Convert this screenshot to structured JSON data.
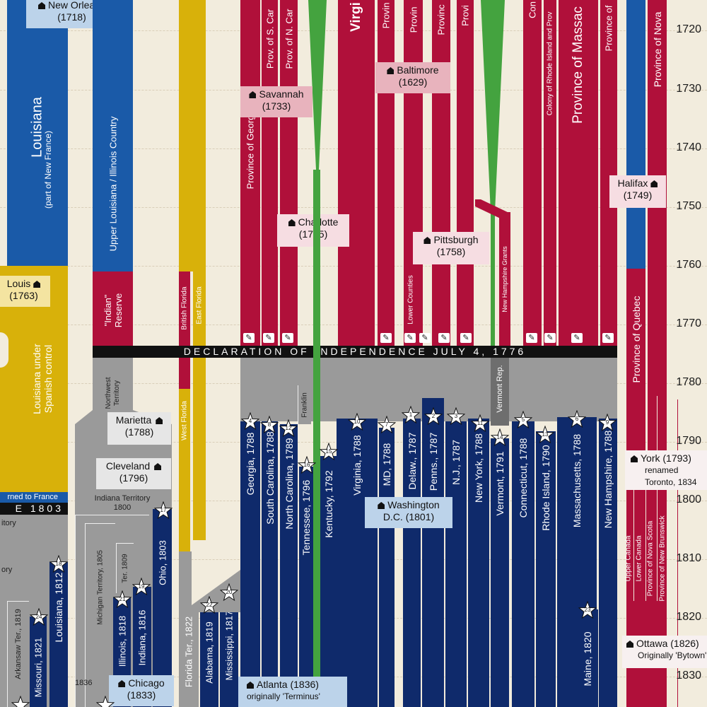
{
  "years": [
    "1720",
    "1730",
    "1740",
    "1750",
    "1760",
    "1770",
    "1780",
    "1790",
    "1800",
    "1810",
    "1820",
    "1830"
  ],
  "declaration": "DECLARATION OF INDEPENDENCE JULY 4, 1776",
  "declaration_left": "E 1803",
  "returned_to_france": "rned to France",
  "colors": {
    "red": "#b0103a",
    "blue": "#1a5aa8",
    "navy": "#0f2a6b",
    "yellow": "#d8b10a",
    "green": "#44a33f",
    "grey": "#9a9a9a",
    "background": "#f2ecdd"
  },
  "labels": {
    "louisiana": "Louisiana",
    "louisiana_sub": "(part of New France)",
    "upper_louisiana": "Upper Louisiana / Illinois Country",
    "indian_reserve": "\"Indian\" Reserve",
    "louisiana_spanish": "Louisiana under Spanish control",
    "northwest_territory": "Northwest Territory",
    "indiana_territory": "Indiana Territory",
    "indiana_territory_year": "1800",
    "territory_left": "itory",
    "territory_left2": "ory",
    "michigan_territory": "Michigan Territory, 1805",
    "ter_1809": "Ter. 1809",
    "arkansaw": "Arkansaw Ter., 1819",
    "year_1836": "1836",
    "british_florida": "British Florida",
    "east_florida": "East Florida",
    "west_florida": "West Florida",
    "florida_ter": "Florida Ter., 1822",
    "franklin": "Franklin",
    "vermont_rep": "Vermont Rep.",
    "lower_counties": "Lower Counties",
    "new_hampshire_grants": "New Hampshire Grants",
    "province_georgia": "Province of Georgia",
    "prov_s_car": "Prov. of S. Car",
    "prov_n_car": "Prov. of N. Car",
    "virginia_top": "Virgi",
    "province_a": "Provin",
    "province_b": "Provin",
    "province_c": "Provinc",
    "province_d": "Provi",
    "conn_top": "Con",
    "colony_ri": "Colony of Rhode Island and Prov",
    "province_mass": "Province of Massac",
    "province_nh": "Province of",
    "province_nova": "Province of Nova",
    "province_quebec": "Province of Quebec",
    "upper_canada": "Upper Canada",
    "lower_canada": "Lower Canada",
    "province_nova_scotia": "Province of Nova Scotia",
    "province_new_brunswick": "Province of New Brunswick"
  },
  "states": {
    "georgia": "Georgia, 1788",
    "south_carolina": "South Carolina, 1788",
    "north_carolina": "North Carolina, 1789",
    "tennessee": "Tennessee, 1796",
    "kentucky": "Kentucky, 1792",
    "virginia": "Virginia, 1788",
    "maryland": "MD, 1788",
    "delaware": "Delaw., 1787",
    "pennsylvania": "Penns., 1787",
    "new_jersey": "N.J., 1787",
    "new_york": "New York, 1788",
    "vermont": "Vermont, 1791",
    "connecticut": "Connecticut, 1788",
    "rhode_island": "Rhode Island, 1790",
    "massachusetts": "Massachusetts, 1788",
    "new_hampshire": "New Hampshire, 1788",
    "maine": "Maine, 1820",
    "ohio": "Ohio, 1803",
    "indiana": "Indiana, 1816",
    "illinois": "Illinois, 1818",
    "alabama": "Alabama, 1819",
    "mississippi": "Mississippi, 1817",
    "louisiana": "Louisiana, 1812",
    "missouri": "Missouri, 1821"
  },
  "stars": [
    "4",
    "8",
    "12",
    "16",
    "15",
    "10",
    "7",
    "1",
    "2",
    "3",
    "11",
    "14",
    "5",
    "13",
    "6",
    "9",
    "17",
    "19",
    "21",
    "18",
    "22",
    "20",
    "23",
    "24"
  ],
  "cities": {
    "new_orleans": {
      "name": "New Orleans",
      "year": "(1718)"
    },
    "savannah": {
      "name": "Savannah",
      "year": "(1733)"
    },
    "baltimore": {
      "name": "Baltimore",
      "year": "(1629)"
    },
    "charlotte": {
      "name": "Charlotte",
      "year": "(1755)"
    },
    "pittsburgh": {
      "name": "Pittsburgh",
      "year": "(1758)"
    },
    "halifax": {
      "name": "Halifax",
      "year": "(1749)"
    },
    "st_louis": {
      "name": "Louis",
      "year": "(1763)"
    },
    "marietta": {
      "name": "Marietta",
      "year": "(1788)"
    },
    "cleveland": {
      "name": "Cleveland",
      "year": "(1796)"
    },
    "washington": {
      "name": "Washington",
      "year": "D.C. (1801)"
    },
    "york": {
      "name": "York (1793)",
      "note1": "renamed",
      "note2": "Toronto, 1834"
    },
    "ottawa": {
      "name": "Ottawa (1826)",
      "note": "Originally 'Bytown'"
    },
    "chicago": {
      "name": "Chicago",
      "year": "(1833)"
    },
    "atlanta": {
      "name": "Atlanta (1836)",
      "note": "originally 'Terminus'"
    }
  }
}
